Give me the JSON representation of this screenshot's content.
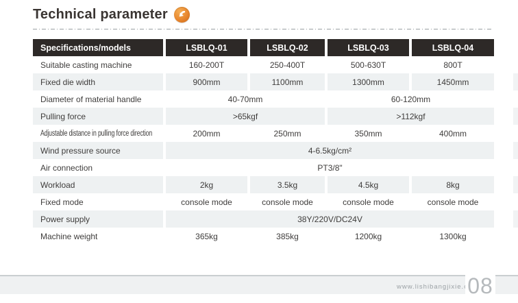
{
  "page": {
    "title": "Technical parameter",
    "accent_color": "#e8872e",
    "footer": {
      "url": "www.lishibangjixie.com",
      "page_number": "08"
    }
  },
  "table": {
    "header": [
      {
        "label": "Specifications/models"
      },
      {
        "label": "LSBLQ-01"
      },
      {
        "label": "LSBLQ-02"
      },
      {
        "label": "LSBLQ-03"
      },
      {
        "label": "LSBLQ-04"
      }
    ],
    "rows": [
      {
        "label": "Suitable casting machine",
        "shaded": false,
        "cells": [
          {
            "text": "160-200T",
            "span": 1
          },
          {
            "text": "250-400T",
            "span": 1
          },
          {
            "text": "500-630T",
            "span": 1
          },
          {
            "text": "800T",
            "span": 1
          }
        ]
      },
      {
        "label": "Fixed die width",
        "shaded": true,
        "cells": [
          {
            "text": "900mm",
            "span": 1
          },
          {
            "text": "1100mm",
            "span": 1
          },
          {
            "text": "1300mm",
            "span": 1
          },
          {
            "text": "1450mm",
            "span": 1
          }
        ]
      },
      {
        "label": "Diameter of material handle",
        "shaded": false,
        "cells": [
          {
            "text": "40-70mm",
            "span": 2
          },
          {
            "text": "60-120mm",
            "span": 2
          }
        ]
      },
      {
        "label": "Pulling force",
        "shaded": true,
        "cells": [
          {
            "text": ">65kgf",
            "span": 2
          },
          {
            "text": ">112kgf",
            "span": 2
          }
        ]
      },
      {
        "label": "Adjustable distance in pulling force direction",
        "shaded": false,
        "condensed": true,
        "cells": [
          {
            "text": "200mm",
            "span": 1
          },
          {
            "text": "250mm",
            "span": 1
          },
          {
            "text": "350mm",
            "span": 1
          },
          {
            "text": "400mm",
            "span": 1
          }
        ]
      },
      {
        "label": "Wind pressure source",
        "shaded": true,
        "cells": [
          {
            "text": "4-6.5kg/cm²",
            "span": 4
          }
        ]
      },
      {
        "label": "Air connection",
        "shaded": false,
        "cells": [
          {
            "text": "PT3/8\"",
            "span": 4
          }
        ]
      },
      {
        "label": "Workload",
        "shaded": true,
        "cells": [
          {
            "text": "2kg",
            "span": 1
          },
          {
            "text": "3.5kg",
            "span": 1
          },
          {
            "text": "4.5kg",
            "span": 1
          },
          {
            "text": "8kg",
            "span": 1
          }
        ]
      },
      {
        "label": "Fixed mode",
        "shaded": false,
        "cells": [
          {
            "text": "console mode",
            "span": 1
          },
          {
            "text": "console mode",
            "span": 1
          },
          {
            "text": "console mode",
            "span": 1
          },
          {
            "text": "console mode",
            "span": 1
          }
        ]
      },
      {
        "label": "Power supply",
        "shaded": true,
        "cells": [
          {
            "text": "38Y/220V/DC24V",
            "span": 4
          }
        ]
      },
      {
        "label": "Machine weight",
        "shaded": false,
        "cells": [
          {
            "text": "365kg",
            "span": 1
          },
          {
            "text": "385kg",
            "span": 1
          },
          {
            "text": "1200kg",
            "span": 1
          },
          {
            "text": "1300kg",
            "span": 1
          }
        ]
      }
    ]
  }
}
